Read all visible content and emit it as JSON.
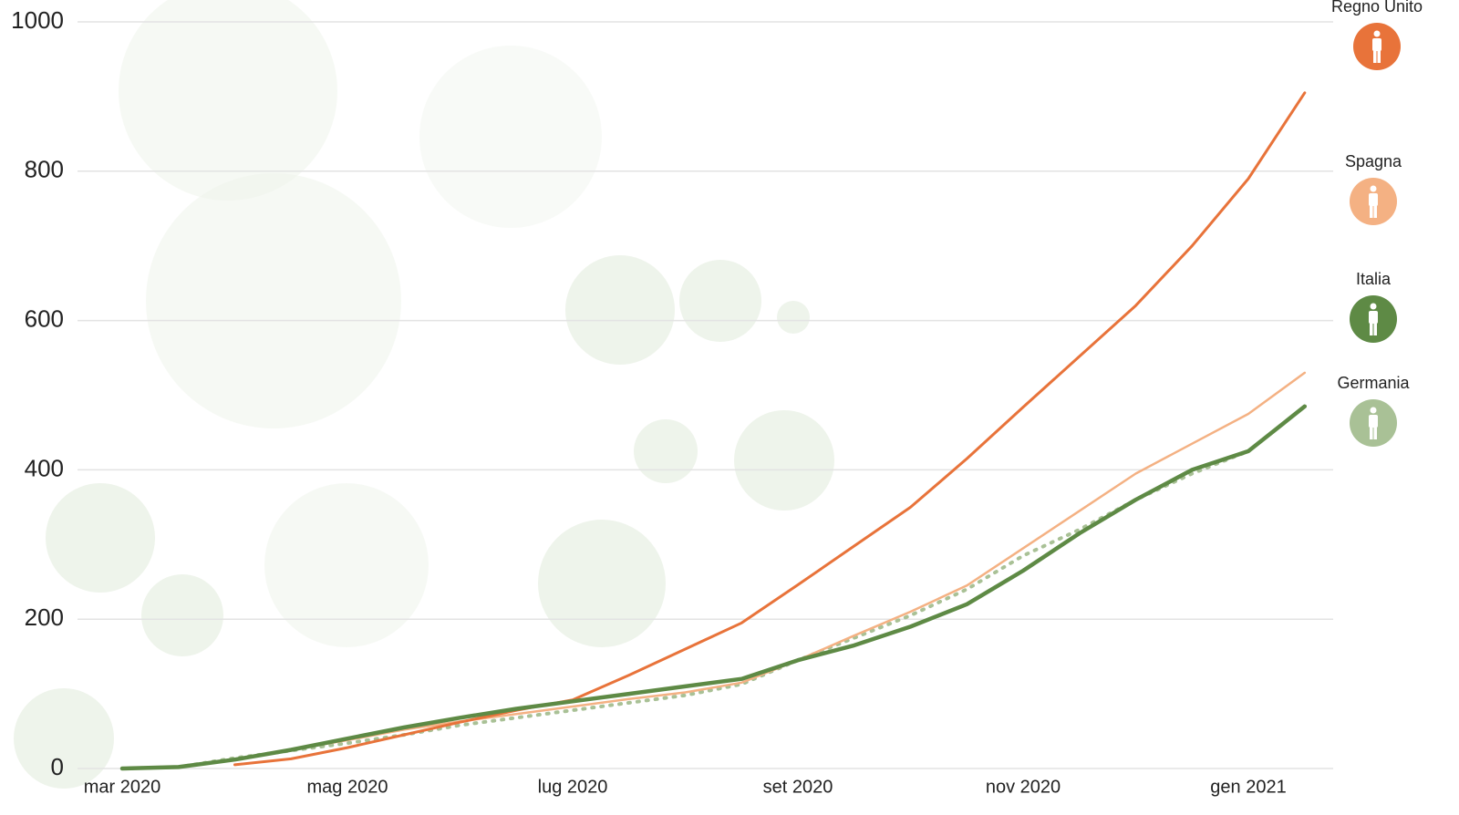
{
  "chart_data": {
    "type": "line",
    "x": [
      "mar 2020",
      null,
      null,
      null,
      "mag 2020",
      null,
      null,
      null,
      "lug 2020",
      null,
      null,
      null,
      "set 2020",
      null,
      null,
      null,
      "nov 2020",
      null,
      null,
      null,
      "gen 2021",
      null
    ],
    "series": [
      {
        "name": "Regno Unito",
        "color": "#e8733a",
        "values": [
          null,
          null,
          5,
          13,
          28,
          45,
          62,
          78,
          92,
          125,
          160,
          195,
          246,
          298,
          350,
          415,
          484,
          552,
          620,
          700,
          790,
          905
        ]
      },
      {
        "name": "Spagna",
        "color": "#f4b183",
        "values": [
          0,
          2,
          12,
          25,
          38,
          52,
          63,
          73,
          83,
          93,
          102,
          115,
          145,
          178,
          210,
          245,
          295,
          345,
          395,
          435,
          475,
          530
        ]
      },
      {
        "name": "Italia",
        "color": "#5e8a45",
        "values": [
          0,
          2,
          12,
          25,
          40,
          55,
          68,
          80,
          90,
          100,
          110,
          120,
          145,
          165,
          190,
          220,
          265,
          315,
          360,
          400,
          425,
          485
        ]
      },
      {
        "name": "Germania",
        "color": "#a9c196",
        "style": "dotted",
        "values": [
          0,
          2,
          14,
          24,
          34,
          45,
          58,
          68,
          78,
          88,
          98,
          113,
          145,
          175,
          205,
          240,
          285,
          320,
          360,
          395,
          425,
          null
        ]
      }
    ],
    "ylim": [
      0,
      1000
    ],
    "yticks": [
      0,
      200,
      400,
      600,
      800,
      1000
    ],
    "grid": true
  }
}
